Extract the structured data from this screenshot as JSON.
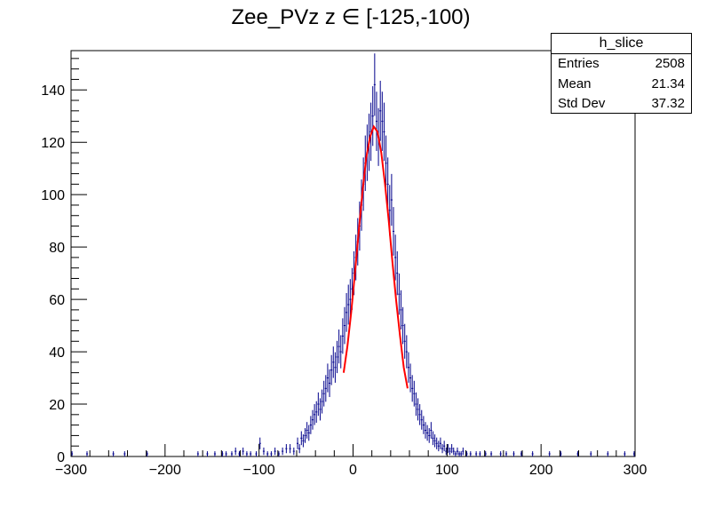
{
  "chart_data": {
    "type": "bar",
    "title": "Zee_PVz z  ∈ [-125,-100)",
    "xlabel": "",
    "ylabel": "",
    "xlim": [
      -300,
      300
    ],
    "ylim": [
      0,
      155
    ],
    "x_ticks": [
      -300,
      -200,
      -100,
      0,
      100,
      200,
      300
    ],
    "y_ticks": [
      0,
      20,
      40,
      60,
      80,
      100,
      120,
      140
    ],
    "x_tick_labels": [
      "−300",
      "−200",
      "−100",
      "0",
      "100",
      "200",
      "300"
    ],
    "y_tick_labels": [
      "0",
      "20",
      "40",
      "60",
      "80",
      "100",
      "120",
      "140"
    ],
    "bin_width": 2,
    "series": [
      {
        "name": "h_slice",
        "style": "histogram",
        "color": "#00008b",
        "points": [
          [
            -299,
            1
          ],
          [
            -283,
            1
          ],
          [
            -255,
            1
          ],
          [
            -243,
            1
          ],
          [
            -219,
            1
          ],
          [
            -165,
            1
          ],
          [
            -155,
            1
          ],
          [
            -147,
            1
          ],
          [
            -139,
            1
          ],
          [
            -135,
            1
          ],
          [
            -129,
            1
          ],
          [
            -125,
            2
          ],
          [
            -121,
            1
          ],
          [
            -117,
            2
          ],
          [
            -113,
            1
          ],
          [
            -109,
            1
          ],
          [
            -103,
            1
          ],
          [
            -99,
            5
          ],
          [
            -95,
            2
          ],
          [
            -91,
            1
          ],
          [
            -87,
            1
          ],
          [
            -83,
            2
          ],
          [
            -79,
            1
          ],
          [
            -75,
            2
          ],
          [
            -71,
            3
          ],
          [
            -67,
            3
          ],
          [
            -63,
            2
          ],
          [
            -59,
            5
          ],
          [
            -57,
            3
          ],
          [
            -55,
            7
          ],
          [
            -53,
            6
          ],
          [
            -51,
            8
          ],
          [
            -49,
            10
          ],
          [
            -47,
            9
          ],
          [
            -45,
            12
          ],
          [
            -43,
            14
          ],
          [
            -41,
            16
          ],
          [
            -39,
            17
          ],
          [
            -37,
            20
          ],
          [
            -35,
            18
          ],
          [
            -33,
            21
          ],
          [
            -31,
            24
          ],
          [
            -29,
            26
          ],
          [
            -27,
            30
          ],
          [
            -25,
            28
          ],
          [
            -23,
            33
          ],
          [
            -21,
            36
          ],
          [
            -19,
            34
          ],
          [
            -17,
            38
          ],
          [
            -15,
            42
          ],
          [
            -13,
            40
          ],
          [
            -11,
            46
          ],
          [
            -9,
            50
          ],
          [
            -7,
            55
          ],
          [
            -5,
            58
          ],
          [
            -3,
            60
          ],
          [
            -1,
            64
          ],
          [
            1,
            70
          ],
          [
            3,
            76
          ],
          [
            5,
            82
          ],
          [
            7,
            88
          ],
          [
            9,
            96
          ],
          [
            11,
            104
          ],
          [
            13,
            112
          ],
          [
            15,
            116
          ],
          [
            17,
            120
          ],
          [
            19,
            124
          ],
          [
            21,
            130
          ],
          [
            23,
            142
          ],
          [
            25,
            128
          ],
          [
            27,
            122
          ],
          [
            29,
            132
          ],
          [
            31,
            128
          ],
          [
            33,
            124
          ],
          [
            35,
            112
          ],
          [
            37,
            104
          ],
          [
            39,
            94
          ],
          [
            41,
            98
          ],
          [
            43,
            86
          ],
          [
            45,
            76
          ],
          [
            47,
            70
          ],
          [
            49,
            62
          ],
          [
            51,
            56
          ],
          [
            53,
            50
          ],
          [
            55,
            44
          ],
          [
            57,
            40
          ],
          [
            59,
            34
          ],
          [
            61,
            30
          ],
          [
            63,
            26
          ],
          [
            65,
            24
          ],
          [
            67,
            20
          ],
          [
            69,
            18
          ],
          [
            71,
            16
          ],
          [
            73,
            14
          ],
          [
            75,
            12
          ],
          [
            77,
            10
          ],
          [
            79,
            9
          ],
          [
            81,
            8
          ],
          [
            83,
            10
          ],
          [
            85,
            7
          ],
          [
            87,
            6
          ],
          [
            89,
            5
          ],
          [
            91,
            4
          ],
          [
            93,
            5
          ],
          [
            95,
            3
          ],
          [
            97,
            4
          ],
          [
            99,
            2
          ],
          [
            101,
            3
          ],
          [
            103,
            2
          ],
          [
            105,
            3
          ],
          [
            107,
            2
          ],
          [
            109,
            1
          ],
          [
            111,
            2
          ],
          [
            113,
            1
          ],
          [
            115,
            1
          ],
          [
            117,
            2
          ],
          [
            121,
            1
          ],
          [
            125,
            1
          ],
          [
            131,
            1
          ],
          [
            135,
            1
          ],
          [
            141,
            1
          ],
          [
            147,
            1
          ],
          [
            157,
            1
          ],
          [
            163,
            1
          ],
          [
            171,
            1
          ],
          [
            179,
            1
          ],
          [
            191,
            1
          ],
          [
            209,
            1
          ],
          [
            221,
            1
          ],
          [
            239,
            1
          ],
          [
            253,
            1
          ],
          [
            271,
            1
          ],
          [
            289,
            1
          ],
          [
            299,
            1
          ]
        ]
      },
      {
        "name": "fit",
        "style": "line",
        "color": "#ff0000",
        "points": [
          [
            -10,
            32
          ],
          [
            -6,
            42
          ],
          [
            -2,
            55
          ],
          [
            2,
            70
          ],
          [
            6,
            86
          ],
          [
            10,
            101
          ],
          [
            14,
            114
          ],
          [
            18,
            122
          ],
          [
            22,
            126
          ],
          [
            26,
            124
          ],
          [
            30,
            116
          ],
          [
            34,
            104
          ],
          [
            38,
            90
          ],
          [
            42,
            74
          ],
          [
            46,
            59
          ],
          [
            50,
            46
          ],
          [
            54,
            34
          ],
          [
            58,
            26
          ]
        ]
      }
    ],
    "stats": {
      "title": "h_slice",
      "rows": [
        {
          "label": "Entries",
          "value": "2508"
        },
        {
          "label": "Mean",
          "value": "21.34"
        },
        {
          "label": "Std Dev",
          "value": "37.32"
        }
      ]
    }
  }
}
